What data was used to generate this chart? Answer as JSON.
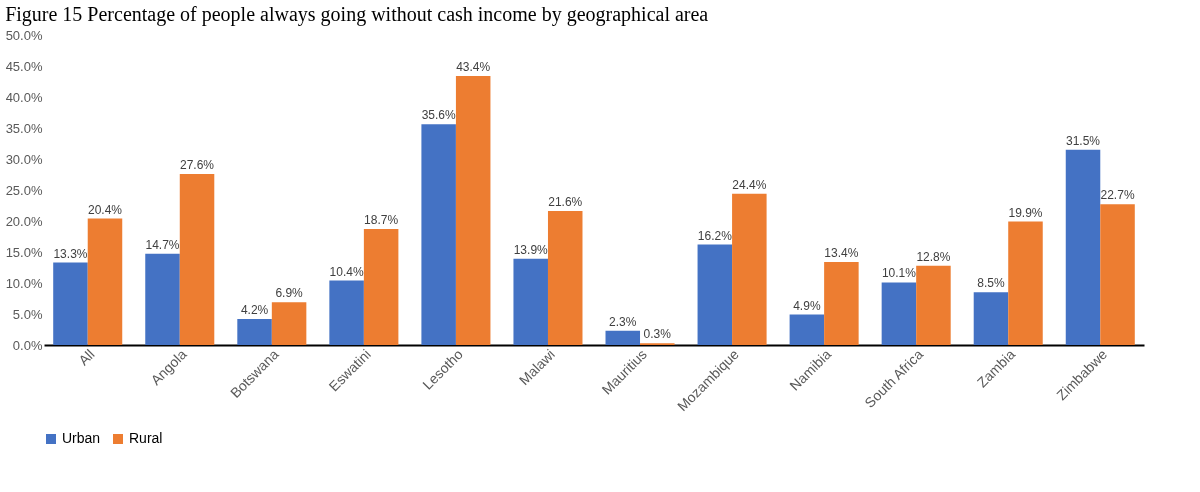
{
  "chart_data": {
    "type": "bar",
    "title": "Figure 15 Percentage of people always going without cash income by geographical area",
    "categories": [
      "All",
      "Angola",
      "Botswana",
      "Eswatini",
      "Lesotho",
      "Malawi",
      "Mauritius",
      "Mozambique",
      "Namibia",
      "South Africa",
      "Zambia",
      "Zimbabwe"
    ],
    "series": [
      {
        "name": "Urban",
        "color": "#4472c4",
        "values": [
          13.3,
          14.7,
          4.2,
          10.4,
          35.6,
          13.9,
          2.3,
          16.2,
          4.9,
          10.1,
          8.5,
          31.5
        ],
        "value_labels": [
          "13.3%",
          "14.7%",
          "4.2%",
          "10.4%",
          "35.6%",
          "13.9%",
          "2.3%",
          "16.2%",
          "4.9%",
          "10.1%",
          "8.5%",
          "31.5%"
        ]
      },
      {
        "name": "Rural",
        "color": "#ed7d31",
        "values": [
          20.4,
          27.6,
          6.9,
          18.7,
          43.4,
          21.6,
          0.3,
          24.4,
          13.4,
          12.8,
          19.9,
          22.7
        ],
        "value_labels": [
          "20.4%",
          "27.6%",
          "6.9%",
          "18.7%",
          "43.4%",
          "21.6%",
          "0.3%",
          "24.4%",
          "13.4%",
          "12.8%",
          "19.9%",
          "22.7%"
        ]
      }
    ],
    "ylim": [
      0,
      50
    ],
    "yticks": [
      {
        "value": 0,
        "label": "0.0%"
      },
      {
        "value": 5,
        "label": "5.0%"
      },
      {
        "value": 10,
        "label": "10.0%"
      },
      {
        "value": 15,
        "label": "15.0%"
      },
      {
        "value": 20,
        "label": "20.0%"
      },
      {
        "value": 25,
        "label": "25.0%"
      },
      {
        "value": 30,
        "label": "30.0%"
      },
      {
        "value": 35,
        "label": "35.0%"
      },
      {
        "value": 40,
        "label": "40.0%"
      },
      {
        "value": 45,
        "label": "45.0%"
      },
      {
        "value": 50,
        "label": "50.0%"
      }
    ],
    "grid": false,
    "legend": "bottom"
  }
}
